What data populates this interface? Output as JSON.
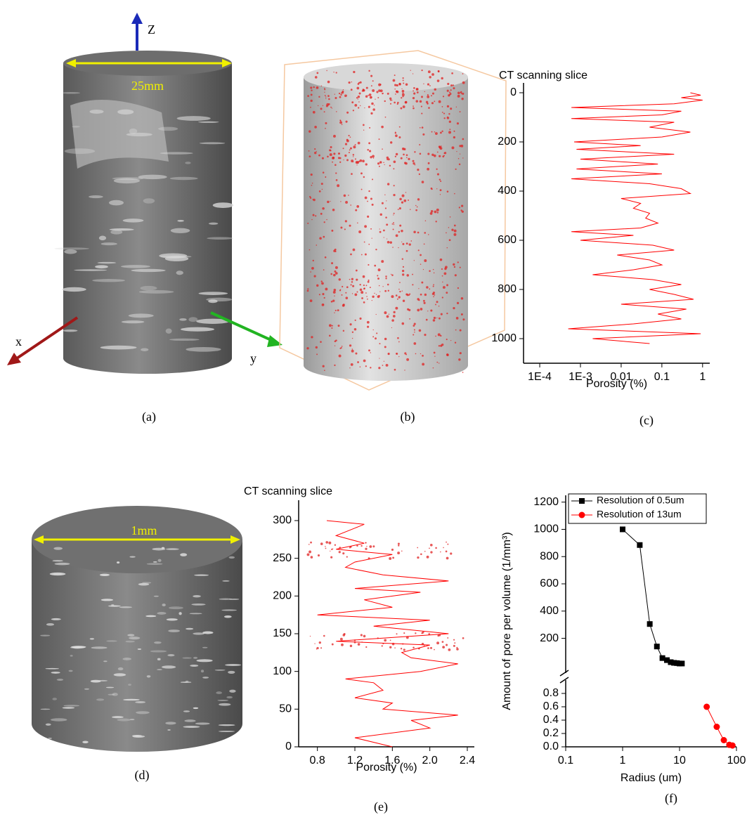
{
  "figure": {
    "panel_labels": [
      "(a)",
      "(b)",
      "(c)",
      "(d)",
      "(e)",
      "(f)"
    ]
  },
  "images": {
    "a": {
      "axis_z": "Z",
      "diameter": "25mm",
      "axis_x": "x",
      "axis_y": "y"
    },
    "d": {
      "diameter": "1mm"
    }
  },
  "chart_data": [
    {
      "type": "line",
      "title": "CT scanning slice",
      "xlabel": "Porosity (%)",
      "log_x": true,
      "y_inverted": true,
      "color": "#ff0000",
      "xlim": [
        4e-05,
        1.5
      ],
      "xticks": [
        {
          "value": 0.0001,
          "label": "1E-4"
        },
        {
          "value": 0.001,
          "label": "1E-3"
        },
        0.01,
        0.1,
        1
      ],
      "ylim": [
        -40,
        1100
      ],
      "yticks": [
        0,
        200,
        400,
        600,
        800,
        1000
      ],
      "slices": [
        0,
        10,
        20,
        30,
        45,
        60,
        75,
        90,
        105,
        120,
        140,
        160,
        180,
        200,
        215,
        230,
        250,
        270,
        290,
        310,
        330,
        350,
        370,
        390,
        410,
        430,
        450,
        470,
        490,
        510,
        530,
        550,
        565,
        580,
        600,
        620,
        640,
        660,
        680,
        700,
        720,
        740,
        760,
        780,
        800,
        820,
        840,
        860,
        880,
        900,
        920,
        940,
        960,
        980,
        1000,
        1020
      ],
      "values": [
        0.5,
        0.9,
        0.3,
        1.0,
        0.2,
        0.0006,
        0.3,
        0.1,
        0.0006,
        0.2,
        0.05,
        0.5,
        0.1,
        0.0007,
        0.03,
        0.0008,
        0.2,
        0.001,
        0.08,
        0.0008,
        0.1,
        0.0006,
        0.05,
        0.3,
        0.5,
        0.01,
        0.03,
        0.02,
        0.05,
        0.04,
        0.08,
        0.03,
        0.0006,
        0.02,
        0.001,
        0.06,
        0.2,
        0.008,
        0.05,
        0.1,
        0.02,
        0.002,
        0.06,
        0.3,
        0.05,
        0.2,
        0.6,
        0.01,
        0.4,
        0.08,
        0.3,
        0.02,
        0.0005,
        0.9,
        0.002,
        0.05
      ]
    },
    {
      "type": "line",
      "title": "CT scanning slice",
      "xlabel": "Porosity (%)",
      "color": "#ff0000",
      "xlim": [
        0.6,
        2.475
      ],
      "xticks": [
        0.8,
        1.2,
        1.6,
        {
          "value": 2,
          "label": "2.0"
        },
        2.4
      ],
      "ylim": [
        0,
        327
      ],
      "yticks": [
        0,
        50,
        100,
        150,
        200,
        250,
        300
      ],
      "slices": [
        0,
        12,
        25,
        35,
        42,
        50,
        58,
        65,
        75,
        85,
        90,
        100,
        110,
        118,
        125,
        135,
        140,
        150,
        160,
        168,
        175,
        185,
        195,
        205,
        210,
        220,
        228,
        238,
        245,
        255,
        262,
        270,
        280,
        290,
        295,
        300
      ],
      "values": [
        1.6,
        1.2,
        2.0,
        1.8,
        2.3,
        1.5,
        1.6,
        1.2,
        1.5,
        1.4,
        1.1,
        1.9,
        2.3,
        1.8,
        1.7,
        2.0,
        1.0,
        2.2,
        1.4,
        2.0,
        0.8,
        1.6,
        1.3,
        1.9,
        1.2,
        2.2,
        1.5,
        1.1,
        1.2,
        1.6,
        1.0,
        1.3,
        1.0,
        1.2,
        1.3,
        0.9
      ]
    },
    {
      "type": "line",
      "xlabel": "Radius (um)",
      "ylabel": "Amount of pore per volume (1/mm³)",
      "log_x": true,
      "legend": "upper left",
      "xlim": [
        0.1,
        100
      ],
      "xticks": [
        0.1,
        1,
        10,
        100
      ],
      "segments": [
        {
          "ylim": [
            -55,
            1250
          ],
          "yticks": [
            200,
            400,
            600,
            800,
            1000,
            1200
          ]
        },
        {
          "ylim": [
            0,
            1
          ],
          "yticks": [
            {
              "value": 0,
              "label": "0.0"
            },
            0.2,
            0.4,
            0.6,
            0.8
          ]
        }
      ],
      "series": [
        {
          "name": "Resolution of 0.5um",
          "color": "#000000",
          "marker": "square",
          "segment": 0,
          "x": [
            1,
            2,
            3,
            4,
            5,
            6,
            7,
            8,
            9,
            10,
            11
          ],
          "values": [
            1000,
            885,
            305,
            140,
            55,
            40,
            25,
            20,
            18,
            15,
            15
          ]
        },
        {
          "name": "Resolution of 13um",
          "color": "#ff0000",
          "marker": "circle",
          "segment": 1,
          "x": [
            30,
            45,
            60,
            75,
            85
          ],
          "values": [
            0.6,
            0.3,
            0.1,
            0.03,
            0.02
          ]
        }
      ]
    }
  ]
}
